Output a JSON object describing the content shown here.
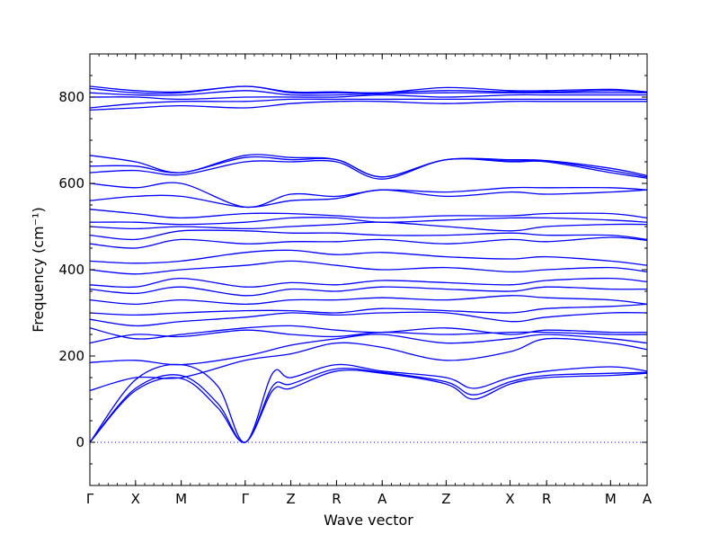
{
  "chart_data": {
    "type": "line",
    "title": "",
    "xlabel": "Wave vector",
    "ylabel": "Frequency (cm⁻¹)",
    "ylim": [
      -100,
      900
    ],
    "yticks": [
      0,
      200,
      400,
      600,
      800
    ],
    "x_high_symmetry_labels": [
      "Γ",
      "X",
      "M",
      "Γ",
      "Z",
      "R",
      "A",
      "Z",
      "X",
      "R",
      "M",
      "A"
    ],
    "x_high_symmetry_positions": [
      0,
      0.5,
      1.0,
      1.7,
      2.2,
      2.7,
      3.2,
      3.9,
      4.6,
      5.0,
      5.7,
      6.1
    ],
    "grid": false,
    "reference_line": {
      "y": 0,
      "style": "dotted"
    },
    "line_color": "#0000ff",
    "approximate": true,
    "series": [
      {
        "x": [
          0,
          0.5,
          1.0,
          1.4,
          1.7,
          2.0,
          2.2,
          2.7,
          3.2,
          3.9,
          4.2,
          4.6,
          5.0,
          5.7,
          6.1
        ],
        "y": [
          0,
          120,
          148,
          80,
          0,
          120,
          125,
          165,
          160,
          135,
          100,
          135,
          150,
          155,
          160
        ]
      },
      {
        "x": [
          0,
          0.5,
          1.0,
          1.4,
          1.7,
          2.0,
          2.2,
          2.7,
          3.2,
          3.9,
          4.2,
          4.6,
          5.0,
          5.7,
          6.1
        ],
        "y": [
          0,
          125,
          155,
          90,
          0,
          130,
          135,
          170,
          162,
          140,
          110,
          140,
          155,
          160,
          162
        ]
      },
      {
        "x": [
          0,
          0.5,
          1.0,
          1.4,
          1.7,
          2.0,
          2.2,
          2.7,
          3.2,
          3.9,
          4.2,
          4.6,
          5.0,
          5.7,
          6.1
        ],
        "y": [
          0,
          145,
          180,
          130,
          0,
          160,
          150,
          180,
          165,
          150,
          125,
          150,
          165,
          175,
          165
        ]
      },
      {
        "x": [
          0,
          0.5,
          1.0,
          1.7,
          2.2,
          2.7,
          3.2,
          3.9,
          4.6,
          5.0,
          5.7,
          6.1
        ],
        "y": [
          120,
          150,
          150,
          190,
          205,
          230,
          220,
          190,
          210,
          240,
          230,
          215
        ]
      },
      {
        "x": [
          0,
          0.5,
          1.0,
          1.7,
          2.2,
          2.7,
          3.2,
          3.9,
          4.6,
          5.0,
          5.7,
          6.1
        ],
        "y": [
          185,
          190,
          180,
          200,
          225,
          240,
          250,
          230,
          240,
          250,
          240,
          230
        ]
      },
      {
        "x": [
          0,
          0.5,
          1.0,
          1.7,
          2.2,
          2.7,
          3.2,
          3.9,
          4.6,
          5.0,
          5.7,
          6.1
        ],
        "y": [
          230,
          250,
          245,
          260,
          250,
          245,
          255,
          250,
          255,
          255,
          250,
          250
        ]
      },
      {
        "x": [
          0,
          0.5,
          1.0,
          1.7,
          2.2,
          2.7,
          3.2,
          3.9,
          4.6,
          5.0,
          5.7,
          6.1
        ],
        "y": [
          265,
          240,
          250,
          265,
          270,
          260,
          255,
          265,
          250,
          260,
          255,
          255
        ]
      },
      {
        "x": [
          0,
          0.5,
          1.0,
          1.7,
          2.2,
          2.7,
          3.2,
          3.9,
          4.6,
          5.0,
          5.7,
          6.1
        ],
        "y": [
          285,
          270,
          280,
          290,
          300,
          295,
          300,
          300,
          280,
          290,
          300,
          300
        ]
      },
      {
        "x": [
          0,
          0.5,
          1.0,
          1.7,
          2.2,
          2.7,
          3.2,
          3.9,
          4.6,
          5.0,
          5.7,
          6.1
        ],
        "y": [
          300,
          295,
          300,
          305,
          305,
          300,
          310,
          305,
          300,
          310,
          315,
          320
        ]
      },
      {
        "x": [
          0,
          0.5,
          1.0,
          1.7,
          2.2,
          2.7,
          3.2,
          3.9,
          4.6,
          5.0,
          5.7,
          6.1
        ],
        "y": [
          330,
          320,
          330,
          320,
          330,
          330,
          335,
          330,
          340,
          335,
          330,
          320
        ]
      },
      {
        "x": [
          0,
          0.5,
          1.0,
          1.7,
          2.2,
          2.7,
          3.2,
          3.9,
          4.6,
          5.0,
          5.7,
          6.1
        ],
        "y": [
          355,
          345,
          360,
          340,
          355,
          350,
          360,
          355,
          350,
          360,
          355,
          355
        ]
      },
      {
        "x": [
          0,
          0.5,
          1.0,
          1.7,
          2.2,
          2.7,
          3.2,
          3.9,
          4.6,
          5.0,
          5.7,
          6.1
        ],
        "y": [
          365,
          360,
          380,
          360,
          370,
          365,
          375,
          370,
          365,
          375,
          380,
          372
        ]
      },
      {
        "x": [
          0,
          0.5,
          1.0,
          1.7,
          2.2,
          2.7,
          3.2,
          3.9,
          4.6,
          5.0,
          5.7,
          6.1
        ],
        "y": [
          400,
          390,
          400,
          410,
          420,
          410,
          400,
          405,
          395,
          400,
          405,
          395
        ]
      },
      {
        "x": [
          0,
          0.5,
          1.0,
          1.7,
          2.2,
          2.7,
          3.2,
          3.9,
          4.6,
          5.0,
          5.7,
          6.1
        ],
        "y": [
          420,
          415,
          420,
          440,
          445,
          435,
          440,
          430,
          425,
          430,
          420,
          410
        ]
      },
      {
        "x": [
          0,
          0.5,
          1.0,
          1.7,
          2.2,
          2.7,
          3.2,
          3.9,
          4.6,
          5.0,
          5.7,
          6.1
        ],
        "y": [
          460,
          450,
          470,
          460,
          465,
          465,
          470,
          460,
          470,
          465,
          475,
          468
        ]
      },
      {
        "x": [
          0,
          0.5,
          1.0,
          1.7,
          2.2,
          2.7,
          3.2,
          3.9,
          4.6,
          5.0,
          5.7,
          6.1
        ],
        "y": [
          480,
          470,
          490,
          490,
          485,
          485,
          480,
          480,
          485,
          480,
          480,
          470
        ]
      },
      {
        "x": [
          0,
          0.5,
          1.0,
          1.7,
          2.2,
          2.7,
          3.2,
          3.9,
          4.6,
          5.0,
          5.7,
          6.1
        ],
        "y": [
          500,
          495,
          500,
          495,
          500,
          505,
          510,
          500,
          490,
          500,
          505,
          505
        ]
      },
      {
        "x": [
          0,
          0.5,
          1.0,
          1.7,
          2.2,
          2.7,
          3.2,
          3.9,
          4.6,
          5.0,
          5.7,
          6.1
        ],
        "y": [
          510,
          510,
          505,
          510,
          520,
          520,
          510,
          515,
          520,
          520,
          515,
          510
        ]
      },
      {
        "x": [
          0,
          0.5,
          1.0,
          1.7,
          2.2,
          2.7,
          3.2,
          3.9,
          4.6,
          5.0,
          5.7,
          6.1
        ],
        "y": [
          540,
          530,
          520,
          530,
          530,
          525,
          520,
          525,
          525,
          530,
          530,
          520
        ]
      },
      {
        "x": [
          0,
          0.5,
          1.0,
          1.7,
          2.2,
          2.7,
          3.2,
          3.9,
          4.6,
          5.0,
          5.7,
          6.1
        ],
        "y": [
          560,
          570,
          570,
          545,
          560,
          565,
          585,
          570,
          580,
          575,
          580,
          585
        ]
      },
      {
        "x": [
          0,
          0.5,
          1.0,
          1.7,
          2.2,
          2.7,
          3.2,
          3.9,
          4.6,
          5.0,
          5.7,
          6.1
        ],
        "y": [
          600,
          590,
          600,
          545,
          575,
          570,
          585,
          580,
          590,
          590,
          590,
          585
        ]
      },
      {
        "x": [
          0,
          0.5,
          1.0,
          1.7,
          2.2,
          2.7,
          3.2,
          3.9,
          4.6,
          5.0,
          5.7,
          6.1
        ],
        "y": [
          625,
          630,
          620,
          650,
          650,
          650,
          610,
          655,
          650,
          650,
          625,
          612
        ]
      },
      {
        "x": [
          0,
          0.5,
          1.0,
          1.7,
          2.2,
          2.7,
          3.2,
          3.9,
          4.6,
          5.0,
          5.7,
          6.1
        ],
        "y": [
          640,
          640,
          625,
          660,
          655,
          655,
          615,
          655,
          652,
          652,
          630,
          615
        ]
      },
      {
        "x": [
          0,
          0.5,
          1.0,
          1.7,
          2.2,
          2.7,
          3.2,
          3.9,
          4.6,
          5.0,
          5.7,
          6.1
        ],
        "y": [
          665,
          650,
          625,
          665,
          660,
          655,
          615,
          655,
          655,
          653,
          635,
          618
        ]
      },
      {
        "x": [
          0,
          0.5,
          1.0,
          1.7,
          2.2,
          2.7,
          3.2,
          3.9,
          4.6,
          5.0,
          5.7,
          6.1
        ],
        "y": [
          770,
          775,
          780,
          775,
          785,
          790,
          790,
          785,
          790,
          790,
          790,
          790
        ]
      },
      {
        "x": [
          0,
          0.5,
          1.0,
          1.7,
          2.2,
          2.7,
          3.2,
          3.9,
          4.6,
          5.0,
          5.7,
          6.1
        ],
        "y": [
          775,
          785,
          790,
          790,
          795,
          795,
          795,
          795,
          795,
          795,
          795,
          795
        ]
      },
      {
        "x": [
          0,
          0.5,
          1.0,
          1.7,
          2.2,
          2.7,
          3.2,
          3.9,
          4.6,
          5.0,
          5.7,
          6.1
        ],
        "y": [
          800,
          800,
          795,
          800,
          800,
          800,
          805,
          800,
          805,
          805,
          805,
          805
        ]
      },
      {
        "x": [
          0,
          0.5,
          1.0,
          1.7,
          2.2,
          2.7,
          3.2,
          3.9,
          4.6,
          5.0,
          5.7,
          6.1
        ],
        "y": [
          810,
          805,
          805,
          815,
          805,
          805,
          808,
          810,
          810,
          810,
          810,
          810
        ]
      },
      {
        "x": [
          0,
          0.5,
          1.0,
          1.7,
          2.2,
          2.7,
          3.2,
          3.9,
          4.6,
          5.0,
          5.7,
          6.1
        ],
        "y": [
          820,
          810,
          810,
          825,
          810,
          810,
          810,
          815,
          812,
          812,
          815,
          812
        ]
      },
      {
        "x": [
          0,
          0.5,
          1.0,
          1.7,
          2.2,
          2.7,
          3.2,
          3.9,
          4.6,
          5.0,
          5.7,
          6.1
        ],
        "y": [
          825,
          815,
          812,
          825,
          812,
          812,
          810,
          822,
          815,
          815,
          818,
          812
        ]
      }
    ]
  }
}
